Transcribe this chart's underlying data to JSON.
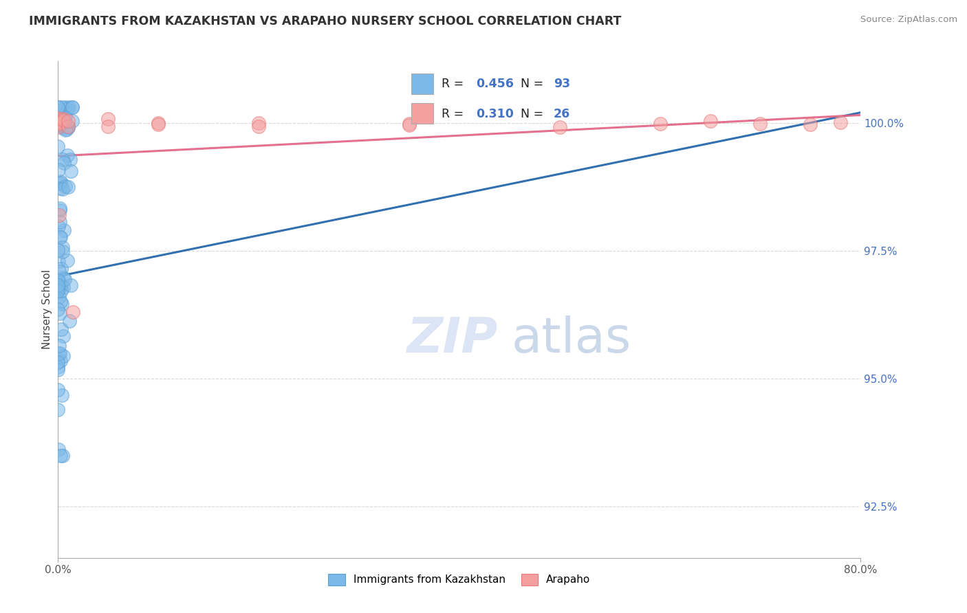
{
  "title": "IMMIGRANTS FROM KAZAKHSTAN VS ARAPAHO NURSERY SCHOOL CORRELATION CHART",
  "source": "Source: ZipAtlas.com",
  "ylabel": "Nursery School",
  "xmin": 0.0,
  "xmax": 80.0,
  "ymin": 91.5,
  "ymax": 101.2,
  "yticks": [
    92.5,
    95.0,
    97.5,
    100.0
  ],
  "ytick_labels": [
    "92.5%",
    "95.0%",
    "97.5%",
    "100.0%"
  ],
  "blue_R": 0.456,
  "blue_N": 93,
  "pink_R": 0.31,
  "pink_N": 26,
  "blue_color": "#7db9e8",
  "pink_color": "#f4a0a0",
  "blue_edge_color": "#5a9fd4",
  "pink_edge_color": "#e87878",
  "blue_line_color": "#1a5fa8",
  "pink_line_color": "#e06080",
  "legend_label_blue": "Immigrants from Kazakhstan",
  "legend_label_pink": "Arapaho",
  "background_color": "#ffffff",
  "grid_color": "#d8d8d8",
  "r_color": "#4472c4",
  "n_color": "#e05c20",
  "watermark_zip_color": "#c8d8f0",
  "watermark_atlas_color": "#a0b8d8"
}
